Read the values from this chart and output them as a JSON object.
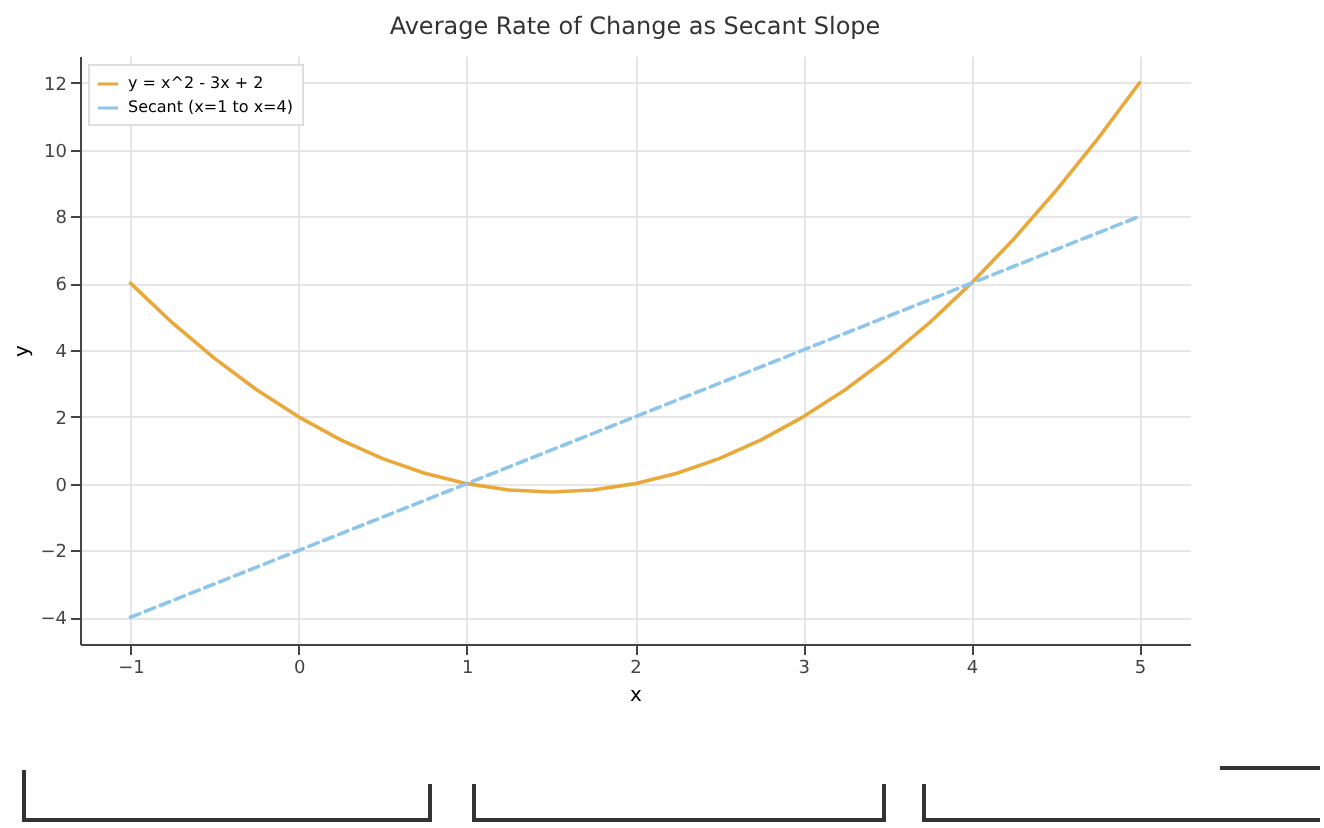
{
  "chart_data": {
    "type": "line",
    "title": "Average Rate of Change as Secant Slope",
    "xlabel": "x",
    "ylabel": "y",
    "xlim": [
      -1.3,
      5.3
    ],
    "xticks": [
      -1,
      0,
      1,
      2,
      3,
      4,
      5
    ],
    "ylim": [
      -4.8,
      12.8
    ],
    "yticks": [
      -4,
      -2,
      0,
      2,
      4,
      6,
      8,
      10,
      12
    ],
    "grid": true,
    "legend": "top left",
    "marker": "none",
    "series": [
      {
        "name": "y = x^2 - 3x + 2",
        "color": "#e9a83a",
        "line_style": "solid",
        "x": [
          -1,
          -0.75,
          -0.5,
          -0.25,
          0,
          0.25,
          0.5,
          0.75,
          1,
          1.25,
          1.5,
          1.75,
          2,
          2.25,
          2.5,
          2.75,
          3,
          3.25,
          3.5,
          3.75,
          4,
          4.25,
          4.5,
          4.75,
          5
        ],
        "values": [
          6,
          4.81,
          3.75,
          2.81,
          2,
          1.31,
          0.75,
          0.31,
          0,
          -0.19,
          -0.25,
          -0.19,
          0,
          0.31,
          0.75,
          1.31,
          2,
          2.81,
          3.75,
          4.81,
          6,
          7.31,
          8.75,
          10.31,
          12
        ]
      },
      {
        "name": "Secant (x=1 to x=4)",
        "color": "#8ec5ea",
        "line_style": "dashed",
        "x": [
          -1,
          5
        ],
        "values": [
          -4,
          8
        ]
      }
    ]
  }
}
